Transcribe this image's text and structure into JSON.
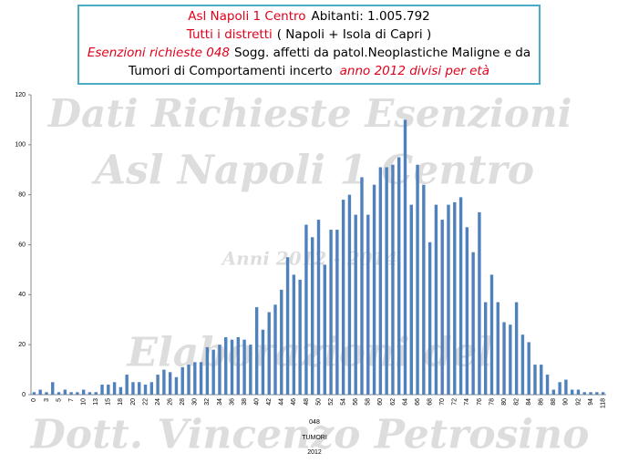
{
  "chart_data": {
    "type": "bar",
    "title": [
      "Asl Napoli 1 Centro",
      "Abitanti: 1.005.792",
      "Tutti i distretti",
      "( Napoli + Isola di Capri )",
      "Esenzioni richieste 048",
      "Sogg. affetti da patol.Neoplastiche Maligne e da",
      "Tumori di Comportamenti incerto",
      "anno 2012 divisi per età"
    ],
    "watermarks": [
      "Dati Richieste Esenzioni",
      "Asl Napoli 1 Centro",
      "Anni 2012 - 2014",
      "Elaborazioni del",
      "Dott. Vincenzo Petrosino"
    ],
    "x_labels": [
      "048",
      "TUMORI",
      "2012"
    ],
    "categories": [
      "0",
      null,
      "3",
      null,
      "5",
      null,
      "7",
      null,
      "10",
      null,
      "13",
      null,
      "15",
      null,
      "18",
      null,
      "20",
      null,
      "22",
      null,
      "24",
      null,
      "26",
      null,
      "28",
      null,
      "30",
      null,
      "32",
      null,
      "34",
      null,
      "36",
      null,
      "38",
      null,
      "40",
      null,
      "42",
      null,
      "44",
      null,
      "46",
      null,
      "48",
      null,
      "50",
      null,
      "52",
      null,
      "54",
      null,
      "56",
      null,
      "58",
      null,
      "60",
      null,
      "62",
      null,
      "64",
      null,
      "66",
      null,
      "68",
      null,
      "70",
      null,
      "72",
      null,
      "74",
      null,
      "76",
      null,
      "78",
      null,
      "80",
      null,
      "82",
      null,
      "84",
      null,
      "86",
      null,
      "88",
      null,
      "90",
      null,
      "92",
      null,
      "94",
      null,
      "118"
    ],
    "values": [
      1,
      2,
      1,
      5,
      1,
      2,
      1,
      1,
      2,
      1,
      1,
      4,
      4,
      5,
      3,
      8,
      5,
      5,
      4,
      5,
      8,
      10,
      9,
      7,
      11,
      12,
      13,
      13,
      19,
      18,
      20,
      23,
      22,
      23,
      22,
      20,
      35,
      26,
      33,
      36,
      42,
      55,
      48,
      46,
      68,
      63,
      70,
      52,
      66,
      66,
      78,
      80,
      72,
      87,
      72,
      84,
      91,
      91,
      92,
      95,
      110,
      76,
      92,
      84,
      61,
      76,
      70,
      76,
      77,
      79,
      67,
      57,
      73,
      37,
      48,
      37,
      29,
      28,
      37,
      24,
      21,
      12,
      12,
      8,
      2,
      5,
      6,
      2,
      2,
      1,
      1,
      1,
      1
    ],
    "color": "#4f81bd",
    "ylim": [
      0,
      120
    ],
    "yticks": [
      0,
      20,
      40,
      60,
      80,
      100,
      120
    ],
    "grid": false
  }
}
